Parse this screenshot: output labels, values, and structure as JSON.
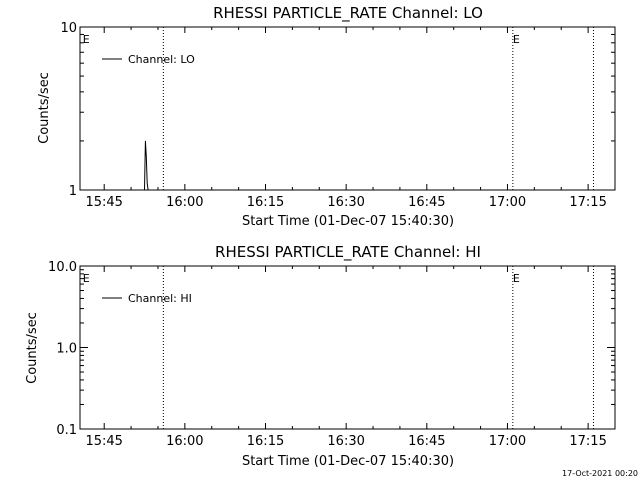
{
  "footer": {
    "timestamp": "17-Oct-2021 00:20"
  },
  "chart_data": [
    {
      "type": "line",
      "title": "RHESSI PARTICLE_RATE Channel: LO",
      "xlabel": "Start Time (01-Dec-07 15:40:30)",
      "ylabel": "Counts/sec",
      "y_scale": "log",
      "ylim": [
        1,
        10
      ],
      "y_ticks": [
        "10",
        "1"
      ],
      "x_ticks": [
        "15:45",
        "16:00",
        "16:15",
        "16:30",
        "16:45",
        "17:00",
        "17:15"
      ],
      "legend": {
        "entries": [
          "Channel: LO"
        ],
        "placement": "top-left"
      },
      "markers": [
        {
          "label": "E",
          "time": "15:41"
        },
        {
          "label": "E",
          "time": "17:01"
        }
      ],
      "dotted_lines": [
        "15:56",
        "17:01",
        "17:16"
      ],
      "series": [
        {
          "name": "Channel: LO",
          "color": "#000000",
          "x": [
            "15:52:30",
            "15:52:40",
            "15:52:50",
            "15:53:00",
            "15:53:10"
          ],
          "values": [
            1,
            2,
            1.6,
            1.1,
            1
          ]
        }
      ]
    },
    {
      "type": "line",
      "title": "RHESSI PARTICLE_RATE Channel: HI",
      "xlabel": "Start Time (01-Dec-07 15:40:30)",
      "ylabel": "Counts/sec",
      "y_scale": "log",
      "ylim": [
        0.1,
        10
      ],
      "y_ticks": [
        "10.0",
        "1.0",
        "0.1"
      ],
      "x_ticks": [
        "15:45",
        "16:00",
        "16:15",
        "16:30",
        "16:45",
        "17:00",
        "17:15"
      ],
      "legend": {
        "entries": [
          "Channel: HI"
        ],
        "placement": "top-left"
      },
      "markers": [
        {
          "label": "E",
          "time": "15:41"
        },
        {
          "label": "E",
          "time": "17:01"
        }
      ],
      "dotted_lines": [
        "15:56",
        "17:01",
        "17:16"
      ],
      "series": [
        {
          "name": "Channel: HI",
          "color": "#000000",
          "x": [],
          "values": []
        }
      ]
    }
  ]
}
